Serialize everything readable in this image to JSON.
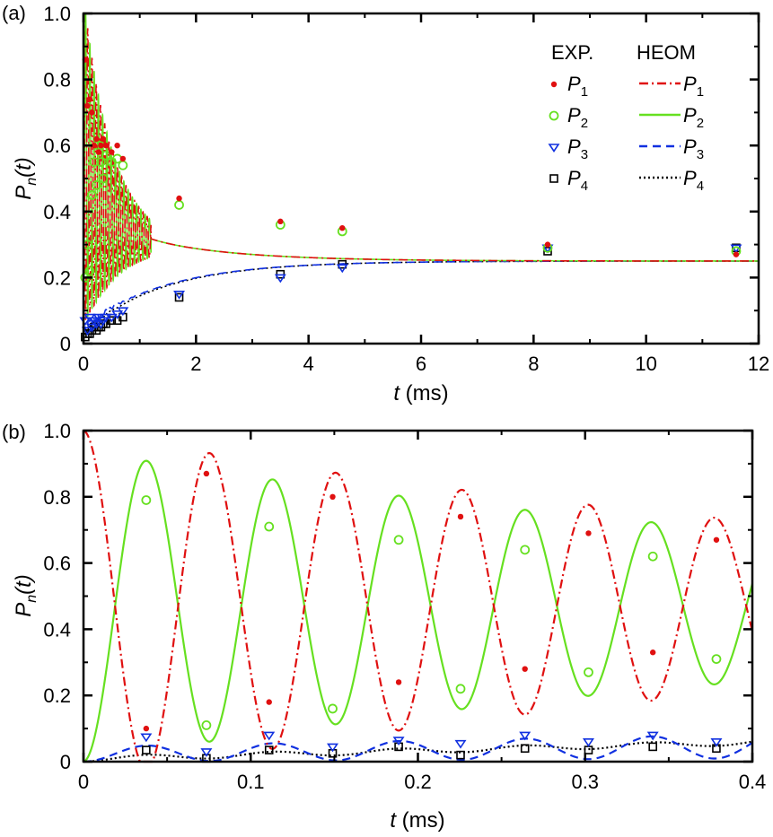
{
  "chart_data": [
    {
      "panel": "(a)",
      "type": "line",
      "xlabel_var": "t",
      "xlabel_unit": " (ms)",
      "ylabel_var": "P",
      "ylabel_sub": "n",
      "ylabel_arg": "(t)",
      "xlim": [
        0,
        12
      ],
      "ylim": [
        0,
        1.0
      ],
      "xticks": [
        0,
        2,
        4,
        6,
        8,
        10,
        12
      ],
      "xtick_labels": [
        "0",
        "2",
        "4",
        "6",
        "8",
        "10",
        "12"
      ],
      "yticks": [
        0,
        0.2,
        0.4,
        0.6,
        0.8,
        1.0
      ],
      "ytick_labels": [
        "0",
        "0.2",
        "0.4",
        "0.6",
        "0.8",
        "1.0"
      ],
      "legend": {
        "position": "top-right",
        "exp_header": "EXP.",
        "heom_header": "HEOM",
        "entries": [
          {
            "name": "P",
            "sub": "1",
            "color": "#e01010",
            "marker": "dot",
            "line": "dashdot"
          },
          {
            "name": "P",
            "sub": "2",
            "color": "#66e020",
            "marker": "circle",
            "line": "solid"
          },
          {
            "name": "P",
            "sub": "3",
            "color": "#1030e0",
            "marker": "triangle-down",
            "line": "dashed"
          },
          {
            "name": "P",
            "sub": "4",
            "color": "#000000",
            "marker": "square",
            "line": "dotted"
          }
        ]
      },
      "experiment": {
        "P1": {
          "x": [
            0.03,
            0.07,
            0.11,
            0.15,
            0.19,
            0.23,
            0.27,
            0.31,
            0.35,
            0.4,
            0.5,
            0.6,
            0.7,
            1.7,
            3.5,
            4.6,
            8.25,
            11.6
          ],
          "y": [
            0.86,
            0.72,
            0.74,
            0.7,
            0.6,
            0.62,
            0.58,
            0.6,
            0.62,
            0.6,
            0.58,
            0.6,
            0.56,
            0.44,
            0.37,
            0.35,
            0.3,
            0.27
          ]
        },
        "P2": {
          "x": [
            0.03,
            0.07,
            0.11,
            0.15,
            0.19,
            0.23,
            0.27,
            0.31,
            0.35,
            0.4,
            0.5,
            0.6,
            0.7,
            1.7,
            3.5,
            4.6,
            8.25,
            11.6
          ],
          "y": [
            0.2,
            0.3,
            0.22,
            0.45,
            0.55,
            0.48,
            0.6,
            0.55,
            0.5,
            0.57,
            0.55,
            0.56,
            0.54,
            0.42,
            0.36,
            0.34,
            0.29,
            0.28
          ]
        },
        "P3": {
          "x": [
            0.03,
            0.07,
            0.11,
            0.15,
            0.19,
            0.23,
            0.27,
            0.31,
            0.35,
            0.4,
            0.5,
            0.6,
            0.7,
            1.7,
            3.5,
            4.6,
            8.25,
            11.6
          ],
          "y": [
            0.07,
            0.04,
            0.08,
            0.05,
            0.07,
            0.06,
            0.08,
            0.06,
            0.07,
            0.08,
            0.08,
            0.09,
            0.1,
            0.15,
            0.2,
            0.23,
            0.29,
            0.29
          ]
        },
        "P4": {
          "x": [
            0.03,
            0.07,
            0.11,
            0.15,
            0.19,
            0.23,
            0.27,
            0.31,
            0.35,
            0.4,
            0.5,
            0.6,
            0.7,
            1.7,
            3.5,
            4.6,
            8.25,
            11.6
          ],
          "y": [
            0.02,
            0.03,
            0.03,
            0.04,
            0.05,
            0.04,
            0.05,
            0.05,
            0.06,
            0.06,
            0.07,
            0.07,
            0.08,
            0.14,
            0.21,
            0.24,
            0.28,
            0.29
          ]
        }
      }
    },
    {
      "panel": "(b)",
      "type": "line",
      "xlabel_var": "t",
      "xlabel_unit": " (ms)",
      "ylabel_var": "P",
      "ylabel_sub": "n",
      "ylabel_arg": "(t)",
      "xlim": [
        0,
        0.4
      ],
      "ylim": [
        0,
        1.0
      ],
      "xticks": [
        0,
        0.1,
        0.2,
        0.3,
        0.4
      ],
      "xtick_labels": [
        "0",
        "0.1",
        "0.2",
        "0.3",
        "0.4"
      ],
      "yticks": [
        0,
        0.2,
        0.4,
        0.6,
        0.8,
        1.0
      ],
      "ytick_labels": [
        "0",
        "0.2",
        "0.4",
        "0.6",
        "0.8",
        "1.0"
      ],
      "experiment": {
        "P1": {
          "x": [
            0.0375,
            0.0735,
            0.111,
            0.149,
            0.1885,
            0.2255,
            0.264,
            0.302,
            0.3405,
            0.3785
          ],
          "y": [
            0.1,
            0.87,
            0.18,
            0.8,
            0.24,
            0.74,
            0.28,
            0.69,
            0.33,
            0.67
          ]
        },
        "P2": {
          "x": [
            0.0375,
            0.0735,
            0.111,
            0.149,
            0.1885,
            0.2255,
            0.264,
            0.302,
            0.3405,
            0.3785
          ],
          "y": [
            0.79,
            0.11,
            0.71,
            0.16,
            0.67,
            0.22,
            0.64,
            0.27,
            0.62,
            0.31
          ]
        },
        "P3": {
          "x": [
            0.0375,
            0.0735,
            0.111,
            0.149,
            0.1885,
            0.2255,
            0.264,
            0.302,
            0.3405,
            0.3785
          ],
          "y": [
            0.075,
            0.03,
            0.08,
            0.045,
            0.065,
            0.055,
            0.08,
            0.06,
            0.08,
            0.06
          ]
        },
        "P4": {
          "x": [
            0.0375,
            0.0735,
            0.111,
            0.149,
            0.1885,
            0.2255,
            0.264,
            0.302,
            0.3405,
            0.3785
          ],
          "y": [
            0.035,
            0.01,
            0.035,
            0.025,
            0.045,
            0.02,
            0.04,
            0.035,
            0.045,
            0.04
          ]
        }
      }
    }
  ],
  "colors": {
    "P1": "#e01010",
    "P2": "#66e020",
    "P3": "#1030e0",
    "P4": "#000000"
  }
}
